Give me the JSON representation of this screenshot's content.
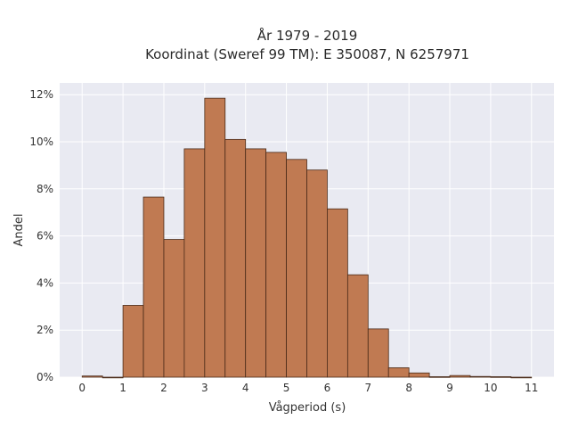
{
  "chart_data": {
    "type": "bar",
    "title_line1": "År 1979 - 2019",
    "title_line2": "Koordinat (Sweref 99 TM): E 350087, N 6257971",
    "xlabel": "Vågperiod (s)",
    "ylabel": "Andel",
    "bin_width": 0.5,
    "bin_starts": [
      0,
      0.5,
      1,
      1.5,
      2,
      2.5,
      3,
      3.5,
      4,
      4.5,
      5,
      5.5,
      6,
      6.5,
      7,
      7.5,
      8,
      8.5,
      9,
      9.5,
      10,
      10.5
    ],
    "values": [
      0.05,
      0.0,
      3.05,
      7.65,
      5.85,
      9.7,
      11.85,
      10.1,
      9.7,
      9.55,
      9.25,
      8.8,
      7.15,
      4.35,
      2.05,
      0.4,
      0.18,
      0.02,
      0.07,
      0.03,
      0.02,
      0.0
    ],
    "xlim": [
      -0.55,
      11.55
    ],
    "ylim": [
      0,
      12.5
    ],
    "x_ticks": [
      0,
      1,
      2,
      3,
      4,
      5,
      6,
      7,
      8,
      9,
      10,
      11
    ],
    "x_tick_labels": [
      "0",
      "1",
      "2",
      "3",
      "4",
      "5",
      "6",
      "7",
      "8",
      "9",
      "10",
      "11"
    ],
    "y_ticks": [
      0,
      2,
      4,
      6,
      8,
      10,
      12
    ],
    "y_tick_labels": [
      "0%",
      "2%",
      "4%",
      "6%",
      "8%",
      "10%",
      "12%"
    ],
    "grid": true,
    "colors": {
      "plot_background": "#e9eaf2",
      "grid": "#ffffff",
      "bar_fill": "#c07a52",
      "bar_stroke": "#4a2a18"
    }
  }
}
